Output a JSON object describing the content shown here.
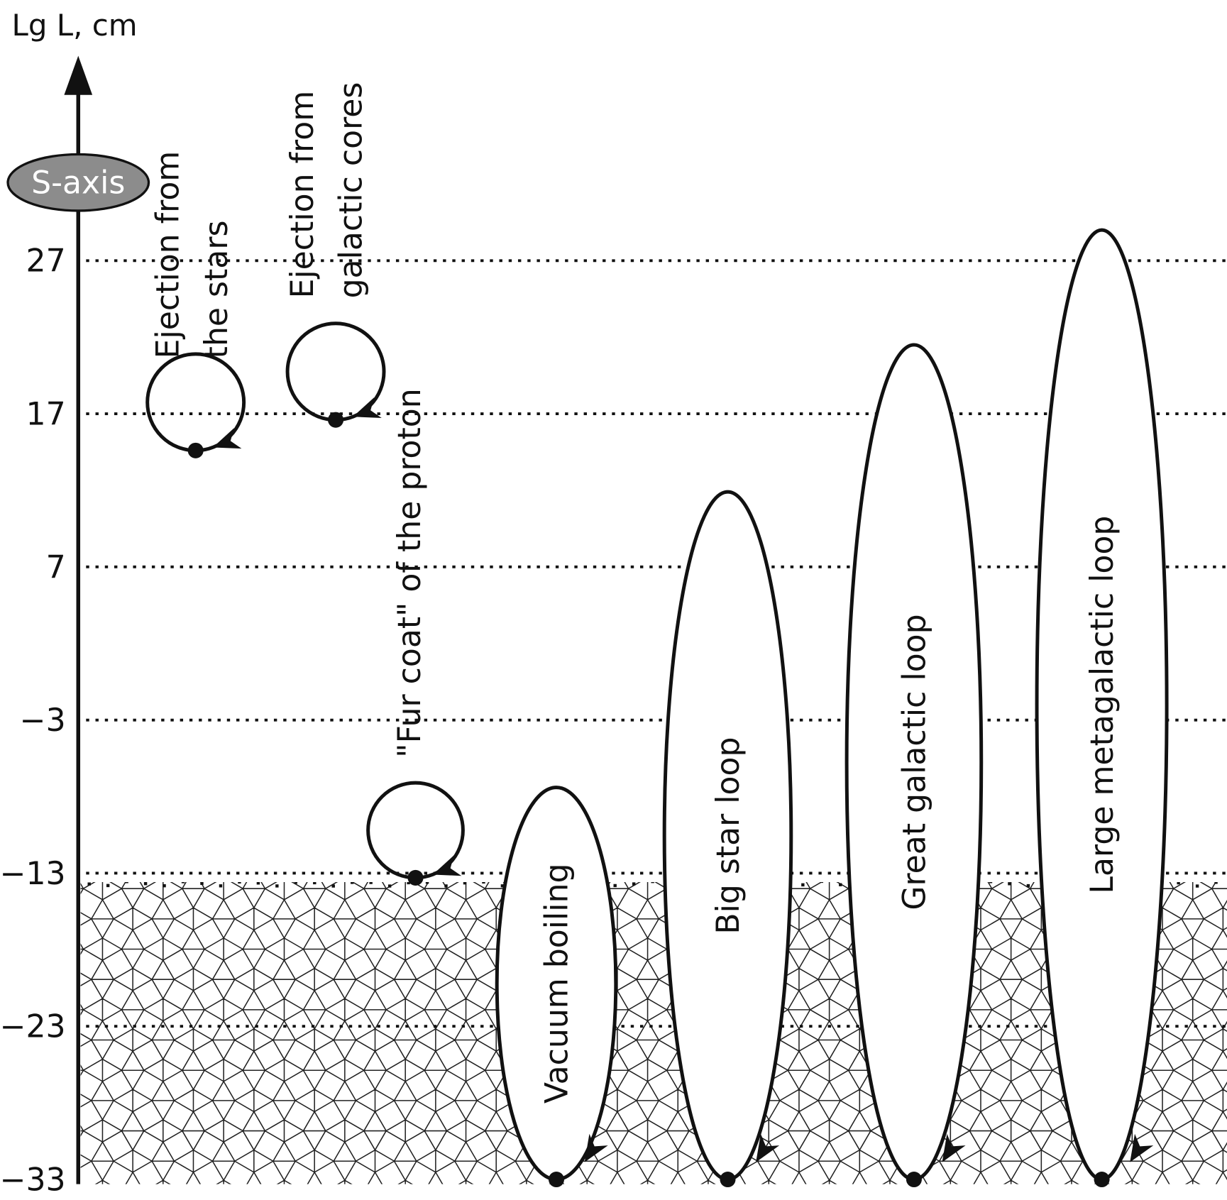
{
  "axis": {
    "label": "Lg L, cm",
    "badge": "S-axis",
    "badge_color": "#8c8c8c",
    "ticks": [
      27,
      17,
      7,
      -3,
      -13,
      -23,
      -33
    ],
    "tick_labels": [
      "27",
      "17",
      "7",
      "−3",
      "−13",
      "−23",
      "−33"
    ],
    "range": [
      -33,
      33
    ]
  },
  "vacuum_level": -13,
  "circles": [
    {
      "label_lines": [
        "Ejection from",
        "the stars"
      ],
      "lg_bottom": 14.6,
      "lg_top": 20.9
    },
    {
      "label_lines": [
        "Ejection from",
        "galactic cores"
      ],
      "lg_bottom": 16.6,
      "lg_top": 22.9
    },
    {
      "label_lines": [
        "\"Fur coat\" of the proton"
      ],
      "lg_bottom": -13.3,
      "lg_top": -7.1
    }
  ],
  "loops": [
    {
      "label": "Vacuum boiling",
      "lg_bottom": -33,
      "lg_top": -7.4
    },
    {
      "label": "Big star loop",
      "lg_bottom": -33,
      "lg_top": 11.9
    },
    {
      "label": "Great galactic loop",
      "lg_bottom": -33,
      "lg_top": 21.5
    },
    {
      "label": "Large metagalactic loop",
      "lg_bottom": -33,
      "lg_top": 29
    }
  ]
}
